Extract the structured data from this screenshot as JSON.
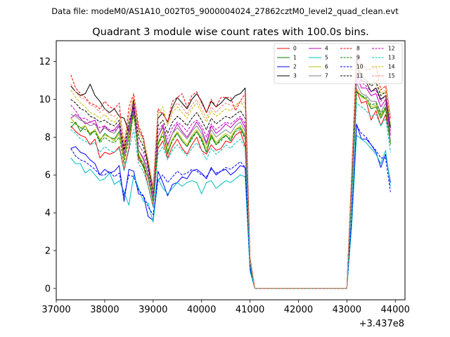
{
  "figure": {
    "suptitle": "Data file: modeM0/AS1A10_002T05_9000004024_27862cztM0_level2_quad_clean.evt",
    "title": "Quadrant 3 module wise count rates with 100.0s bins."
  },
  "chart_data": {
    "type": "line",
    "title": "Quadrant 3 module wise count rates with 100.0s bins.",
    "xlabel": "",
    "ylabel": "",
    "x_offset_label": "+3.437e8",
    "xlim": [
      37000,
      44200
    ],
    "ylim": [
      -0.6,
      13.1
    ],
    "xticks": [
      37000,
      38000,
      39000,
      40000,
      41000,
      42000,
      43000,
      44000
    ],
    "xtick_labels": [
      "37000",
      "38000",
      "39000",
      "40000",
      "41000",
      "42000",
      "43000",
      "44000"
    ],
    "yticks": [
      0,
      2,
      4,
      6,
      8,
      10,
      12
    ],
    "ytick_labels": [
      "0",
      "2",
      "4",
      "6",
      "8",
      "10",
      "12"
    ],
    "legend_position": "top-right",
    "x": [
      37300,
      37400,
      37500,
      37600,
      37700,
      37800,
      37900,
      38000,
      38100,
      38200,
      38300,
      38400,
      38500,
      38600,
      38700,
      38800,
      38900,
      39000,
      39100,
      39200,
      39300,
      39400,
      39500,
      39600,
      39700,
      39800,
      39900,
      40000,
      40100,
      40200,
      40300,
      40400,
      40500,
      40600,
      40700,
      40800,
      40900,
      41000,
      41100,
      41200,
      41300,
      41400,
      41500,
      41600,
      41700,
      41800,
      41900,
      42000,
      42100,
      42200,
      42300,
      42400,
      42500,
      42600,
      42700,
      42800,
      42900,
      43000,
      43100,
      43200,
      43300,
      43400,
      43500,
      43600,
      43700,
      43800,
      43900
    ],
    "series": [
      {
        "name": "0",
        "color": "#ff0000",
        "dash": false,
        "values": [
          8.6,
          8.3,
          8.1,
          8.0,
          7.6,
          7.9,
          6.9,
          7.2,
          7.1,
          7.2,
          7.5,
          6.3,
          7.4,
          9.6,
          6.8,
          6.5,
          5.4,
          4.3,
          7.4,
          7.8,
          6.9,
          7.5,
          7.9,
          7.4,
          7.1,
          7.6,
          8.0,
          7.3,
          7.1,
          7.6,
          7.3,
          7.4,
          7.8,
          7.7,
          8.1,
          8.3,
          7.5,
          1.2,
          0,
          0,
          0,
          0,
          0,
          0,
          0,
          0,
          0,
          0,
          0,
          0,
          0,
          0,
          0,
          0,
          0,
          0,
          0,
          0,
          4.9,
          10.5,
          9.8,
          9.9,
          8.9,
          9.4,
          8.6,
          9.2,
          7.8
        ]
      },
      {
        "name": "1",
        "color": "#008000",
        "dash": false,
        "values": [
          8.5,
          8.8,
          8.3,
          8.6,
          8.1,
          8.4,
          7.8,
          8.2,
          8.0,
          7.9,
          8.3,
          6.8,
          8.1,
          9.4,
          7.0,
          6.4,
          5.9,
          4.6,
          7.6,
          8.3,
          7.1,
          7.9,
          8.2,
          7.8,
          7.5,
          8.0,
          8.3,
          7.9,
          7.2,
          8.1,
          7.6,
          7.9,
          8.1,
          7.8,
          8.4,
          8.5,
          8.0,
          1.3,
          0,
          0,
          0,
          0,
          0,
          0,
          0,
          0,
          0,
          0,
          0,
          0,
          0,
          0,
          0,
          0,
          0,
          0,
          0,
          0,
          5.0,
          10.4,
          10.2,
          10.0,
          9.5,
          9.6,
          9.0,
          9.5,
          7.6
        ]
      },
      {
        "name": "2",
        "color": "#0000ff",
        "dash": false,
        "values": [
          7.4,
          7.5,
          7.2,
          7.1,
          6.8,
          6.6,
          6.0,
          6.3,
          6.1,
          6.2,
          6.5,
          4.6,
          6.3,
          6.2,
          5.0,
          4.9,
          3.8,
          3.6,
          6.2,
          5.6,
          4.9,
          5.5,
          5.6,
          5.9,
          5.8,
          6.2,
          6.3,
          6.1,
          5.8,
          6.4,
          6.0,
          6.2,
          6.3,
          6.0,
          6.2,
          6.5,
          6.4,
          1.0,
          0,
          0,
          0,
          0,
          0,
          0,
          0,
          0,
          0,
          0,
          0,
          0,
          0,
          0,
          0,
          0,
          0,
          0,
          0,
          0,
          3.6,
          8.7,
          7.9,
          7.9,
          7.6,
          7.2,
          6.4,
          7.1,
          5.6
        ]
      },
      {
        "name": "3",
        "color": "#000000",
        "dash": false,
        "values": [
          10.7,
          10.4,
          10.2,
          10.3,
          10.8,
          10.2,
          9.9,
          9.5,
          9.3,
          9.5,
          9.1,
          9.0,
          8.3,
          10.0,
          8.4,
          7.9,
          6.4,
          5.2,
          9.0,
          9.3,
          8.8,
          9.6,
          10.1,
          9.8,
          9.5,
          10.0,
          10.3,
          9.9,
          9.3,
          9.9,
          9.6,
          9.8,
          10.1,
          9.9,
          10.2,
          10.3,
          10.6,
          1.6,
          0,
          0,
          0,
          0,
          0,
          0,
          0,
          0,
          0,
          0,
          0,
          0,
          0,
          0,
          0,
          0,
          0,
          0,
          0,
          0,
          6.0,
          12.1,
          11.0,
          10.9,
          10.4,
          10.6,
          10.0,
          10.2,
          8.5
        ]
      },
      {
        "name": "4",
        "color": "#bf00bf",
        "dash": false,
        "values": [
          9.0,
          9.2,
          9.0,
          8.7,
          8.8,
          8.9,
          8.2,
          8.6,
          8.3,
          8.4,
          8.7,
          7.0,
          8.5,
          9.8,
          7.3,
          6.9,
          6.0,
          4.8,
          8.0,
          8.6,
          7.6,
          8.2,
          8.7,
          8.3,
          8.0,
          8.4,
          8.8,
          8.4,
          7.7,
          8.6,
          8.2,
          8.4,
          8.7,
          8.5,
          8.8,
          9.0,
          8.5,
          1.4,
          0,
          0,
          0,
          0,
          0,
          0,
          0,
          0,
          0,
          0,
          0,
          0,
          0,
          0,
          0,
          0,
          0,
          0,
          0,
          0,
          5.4,
          11.3,
          10.6,
          10.6,
          10.2,
          10.3,
          9.6,
          10.0,
          8.1
        ]
      },
      {
        "name": "5",
        "color": "#00bfbf",
        "dash": false,
        "values": [
          6.9,
          6.6,
          6.6,
          6.1,
          6.3,
          6.0,
          5.7,
          5.8,
          6.1,
          5.5,
          5.7,
          5.1,
          4.4,
          6.0,
          5.3,
          4.6,
          4.5,
          3.5,
          5.8,
          5.3,
          5.0,
          5.3,
          5.6,
          5.4,
          5.6,
          5.7,
          5.6,
          5.0,
          5.6,
          5.7,
          5.3,
          5.5,
          5.7,
          5.6,
          5.8,
          6.0,
          5.9,
          0.9,
          0,
          0,
          0,
          0,
          0,
          0,
          0,
          0,
          0,
          0,
          0,
          0,
          0,
          0,
          0,
          0,
          0,
          0,
          0,
          0,
          3.3,
          8.1,
          7.9,
          7.7,
          7.4,
          7.1,
          6.6,
          7.3,
          5.4
        ]
      },
      {
        "name": "6",
        "color": "#bfbf00",
        "dash": false,
        "values": [
          9.0,
          8.7,
          8.5,
          8.6,
          8.2,
          8.4,
          7.9,
          8.1,
          8.0,
          7.8,
          8.2,
          6.8,
          8.0,
          9.2,
          7.1,
          6.6,
          5.8,
          4.5,
          7.7,
          8.3,
          7.3,
          7.9,
          8.3,
          7.9,
          7.6,
          8.1,
          8.4,
          8.0,
          7.4,
          8.2,
          7.7,
          8.0,
          8.2,
          8.0,
          8.4,
          8.6,
          8.1,
          1.3,
          0,
          0,
          0,
          0,
          0,
          0,
          0,
          0,
          0,
          0,
          0,
          0,
          0,
          0,
          0,
          0,
          0,
          0,
          0,
          0,
          5.1,
          10.6,
          10.1,
          10.0,
          9.6,
          9.7,
          9.1,
          9.6,
          7.7
        ]
      },
      {
        "name": "7",
        "color": "#808080",
        "dash": false,
        "values": [
          9.2,
          9.1,
          8.9,
          8.8,
          8.6,
          8.7,
          8.2,
          8.5,
          8.3,
          8.2,
          8.6,
          7.0,
          8.4,
          9.5,
          7.3,
          6.8,
          6.0,
          4.7,
          8.0,
          8.5,
          7.5,
          8.2,
          8.5,
          8.2,
          7.9,
          8.3,
          8.6,
          8.2,
          7.6,
          8.4,
          8.0,
          8.2,
          8.4,
          8.2,
          8.6,
          8.8,
          8.3,
          1.3,
          0,
          0,
          0,
          0,
          0,
          0,
          0,
          0,
          0,
          0,
          0,
          0,
          0,
          0,
          0,
          0,
          0,
          0,
          0,
          0,
          5.3,
          10.9,
          10.3,
          10.2,
          9.9,
          9.9,
          9.3,
          9.8,
          7.8
        ]
      },
      {
        "name": "8",
        "color": "#ff0000",
        "dash": true,
        "values": [
          11.3,
          10.6,
          10.3,
          10.1,
          9.8,
          9.7,
          9.5,
          9.9,
          9.6,
          9.5,
          9.8,
          7.4,
          9.6,
          10.3,
          8.6,
          8.0,
          6.7,
          5.4,
          9.5,
          9.2,
          8.8,
          9.9,
          10.1,
          10.3,
          9.6,
          10.2,
          10.4,
          9.8,
          9.3,
          10.0,
          9.6,
          10.1,
          10.1,
          10.1,
          9.4,
          9.9,
          10.3,
          1.6,
          0,
          0,
          0,
          0,
          0,
          0,
          0,
          0,
          0,
          0,
          0,
          0,
          0,
          0,
          0,
          0,
          0,
          0,
          0,
          0,
          6.2,
          12.4,
          11.9,
          11.6,
          11.6,
          11.7,
          10.5,
          10.7,
          9.0
        ]
      },
      {
        "name": "9",
        "color": "#008000",
        "dash": true,
        "values": [
          8.8,
          8.7,
          8.5,
          8.4,
          8.2,
          8.3,
          7.7,
          8.0,
          7.8,
          7.7,
          8.0,
          6.6,
          7.9,
          9.2,
          7.0,
          6.6,
          5.8,
          4.6,
          7.6,
          8.1,
          7.2,
          7.8,
          8.2,
          7.8,
          7.5,
          7.9,
          8.3,
          7.8,
          7.2,
          8.0,
          7.6,
          7.8,
          8.1,
          7.9,
          8.3,
          8.4,
          7.9,
          1.3,
          0,
          0,
          0,
          0,
          0,
          0,
          0,
          0,
          0,
          0,
          0,
          0,
          0,
          0,
          0,
          0,
          0,
          0,
          0,
          0,
          5.1,
          10.4,
          10.2,
          10.1,
          9.7,
          9.8,
          9.2,
          9.6,
          7.6
        ]
      },
      {
        "name": "10",
        "color": "#0000ff",
        "dash": true,
        "values": [
          7.4,
          7.0,
          6.8,
          6.7,
          6.5,
          6.3,
          6.0,
          6.0,
          6.2,
          5.9,
          6.1,
          4.9,
          6.0,
          5.9,
          5.2,
          4.9,
          4.3,
          3.9,
          5.7,
          6.0,
          5.6,
          5.9,
          6.2,
          6.0,
          6.1,
          6.3,
          6.2,
          6.0,
          5.9,
          6.3,
          6.1,
          6.2,
          6.4,
          6.3,
          6.5,
          6.7,
          6.4,
          1.1,
          0,
          0,
          0,
          0,
          0,
          0,
          0,
          0,
          0,
          0,
          0,
          0,
          0,
          0,
          0,
          0,
          0,
          0,
          0,
          0,
          3.8,
          8.6,
          8.2,
          8.0,
          7.6,
          7.3,
          6.9,
          6.9,
          5.1
        ]
      },
      {
        "name": "11",
        "color": "#000000",
        "dash": true,
        "values": [
          10.0,
          9.8,
          9.5,
          9.4,
          9.1,
          9.0,
          8.8,
          8.9,
          8.7,
          8.6,
          8.9,
          7.3,
          8.8,
          9.6,
          8.0,
          7.5,
          6.5,
          5.0,
          8.6,
          8.9,
          8.2,
          8.8,
          9.1,
          8.9,
          8.6,
          9.0,
          9.3,
          8.9,
          8.4,
          9.0,
          8.7,
          8.9,
          9.1,
          9.0,
          9.2,
          9.4,
          9.0,
          1.5,
          0,
          0,
          0,
          0,
          0,
          0,
          0,
          0,
          0,
          0,
          0,
          0,
          0,
          0,
          0,
          0,
          0,
          0,
          0,
          0,
          5.8,
          11.7,
          11.2,
          11.0,
          10.7,
          10.9,
          10.2,
          10.4,
          8.6
        ]
      },
      {
        "name": "12",
        "color": "#bf00bf",
        "dash": true,
        "values": [
          9.7,
          9.4,
          9.0,
          9.0,
          8.8,
          8.7,
          8.5,
          8.6,
          8.4,
          8.3,
          8.6,
          7.1,
          8.5,
          9.5,
          7.6,
          7.2,
          6.2,
          5.0,
          8.3,
          8.7,
          7.9,
          8.5,
          8.8,
          8.6,
          8.3,
          8.7,
          8.9,
          8.6,
          8.0,
          8.7,
          8.4,
          8.6,
          8.8,
          8.7,
          8.9,
          9.1,
          8.7,
          1.4,
          0,
          0,
          0,
          0,
          0,
          0,
          0,
          0,
          0,
          0,
          0,
          0,
          0,
          0,
          0,
          0,
          0,
          0,
          0,
          0,
          5.6,
          11.4,
          10.9,
          10.7,
          10.4,
          10.5,
          9.9,
          10.2,
          8.3
        ]
      },
      {
        "name": "13",
        "color": "#00bfbf",
        "dash": true,
        "values": [
          8.4,
          8.2,
          7.9,
          7.8,
          7.6,
          7.7,
          7.2,
          7.5,
          7.3,
          7.2,
          7.4,
          6.2,
          7.3,
          8.4,
          6.6,
          6.2,
          5.4,
          4.3,
          7.1,
          7.5,
          6.8,
          7.3,
          7.6,
          7.3,
          7.0,
          7.4,
          7.7,
          7.3,
          6.8,
          7.4,
          7.1,
          7.3,
          7.6,
          7.4,
          7.7,
          7.9,
          7.4,
          1.2,
          0,
          0,
          0,
          0,
          0,
          0,
          0,
          0,
          0,
          0,
          0,
          0,
          0,
          0,
          0,
          0,
          0,
          0,
          0,
          0,
          4.7,
          9.8,
          9.6,
          9.4,
          9.1,
          9.2,
          8.6,
          9.0,
          7.2
        ]
      },
      {
        "name": "14",
        "color": "#bfbf00",
        "dash": true,
        "values": [
          10.5,
          10.1,
          9.8,
          9.6,
          9.3,
          9.2,
          9.0,
          9.2,
          8.9,
          8.8,
          9.1,
          7.6,
          9.0,
          10.1,
          8.2,
          7.7,
          6.7,
          5.2,
          9.2,
          9.6,
          8.6,
          9.3,
          9.6,
          9.3,
          9.0,
          9.5,
          9.8,
          9.3,
          8.8,
          9.4,
          9.1,
          9.3,
          9.5,
          9.4,
          9.7,
          9.9,
          9.5,
          1.5,
          0,
          0,
          0,
          0,
          0,
          0,
          0,
          0,
          0,
          0,
          0,
          0,
          0,
          0,
          0,
          0,
          0,
          0,
          0,
          0,
          5.9,
          11.8,
          11.3,
          11.1,
          10.8,
          11.0,
          10.3,
          10.5,
          8.7
        ]
      },
      {
        "name": "15",
        "color": "#ff8080",
        "dash": true,
        "values": [
          10.8,
          10.4,
          10.1,
          10.0,
          9.7,
          9.6,
          9.3,
          9.5,
          9.2,
          9.1,
          9.4,
          7.8,
          9.2,
          10.2,
          8.4,
          7.9,
          6.8,
          5.3,
          9.3,
          9.3,
          8.7,
          9.5,
          9.8,
          9.6,
          9.2,
          9.7,
          10.0,
          9.5,
          9.0,
          9.6,
          9.3,
          9.6,
          9.8,
          9.7,
          9.6,
          9.9,
          9.8,
          1.6,
          0,
          0,
          0,
          0,
          0,
          0,
          0,
          0,
          0,
          0,
          0,
          0,
          0,
          0,
          0,
          0,
          0,
          0,
          0,
          0,
          6.1,
          12.6,
          11.8,
          11.5,
          11.7,
          11.8,
          11.1,
          11.0,
          9.1
        ]
      }
    ]
  }
}
